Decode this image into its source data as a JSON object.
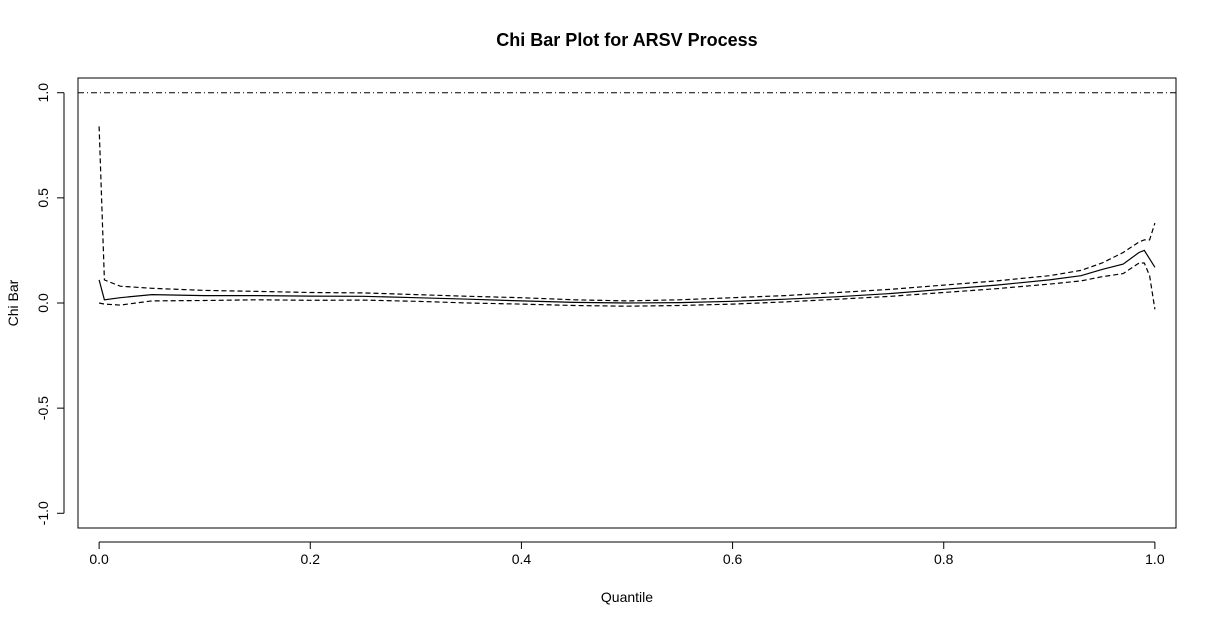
{
  "chart_data": {
    "type": "line",
    "title": "Chi Bar Plot for ARSV Process",
    "xlabel": "Quantile",
    "ylabel": "Chi Bar",
    "xlim": [
      -0.02,
      1.02
    ],
    "ylim": [
      -1.07,
      1.07
    ],
    "xticks": [
      0.0,
      0.2,
      0.4,
      0.6,
      0.8,
      1.0
    ],
    "xtick_labels": [
      "0.0",
      "0.2",
      "0.4",
      "0.6",
      "0.8",
      "1.0"
    ],
    "yticks": [
      -1.0,
      -0.5,
      0.0,
      0.5,
      1.0
    ],
    "ytick_labels": [
      "-1.0",
      "-0.5",
      "0.0",
      "0.5",
      "1.0"
    ],
    "grid": false,
    "reference_lines": [
      {
        "y": 1.0,
        "style": "dotdash"
      }
    ],
    "series": [
      {
        "style": "solid",
        "x": [
          0.0,
          0.005,
          0.02,
          0.05,
          0.1,
          0.15,
          0.2,
          0.25,
          0.3,
          0.35,
          0.4,
          0.45,
          0.5,
          0.55,
          0.6,
          0.65,
          0.7,
          0.75,
          0.8,
          0.85,
          0.9,
          0.93,
          0.95,
          0.97,
          0.985,
          0.99,
          0.995,
          1.0
        ],
        "y": [
          0.11,
          0.015,
          0.025,
          0.04,
          0.035,
          0.035,
          0.033,
          0.032,
          0.025,
          0.018,
          0.01,
          0.003,
          0.0,
          0.002,
          0.008,
          0.018,
          0.03,
          0.045,
          0.065,
          0.085,
          0.11,
          0.13,
          0.16,
          0.185,
          0.24,
          0.25,
          0.21,
          0.17
        ]
      },
      {
        "style": "dashed",
        "x": [
          0.0,
          0.005,
          0.02,
          0.05,
          0.1,
          0.15,
          0.2,
          0.25,
          0.3,
          0.35,
          0.4,
          0.45,
          0.5,
          0.55,
          0.6,
          0.65,
          0.7,
          0.75,
          0.8,
          0.85,
          0.9,
          0.93,
          0.95,
          0.97,
          0.985,
          0.99,
          0.995,
          1.0
        ],
        "y": [
          0.84,
          0.11,
          0.08,
          0.07,
          0.06,
          0.055,
          0.05,
          0.048,
          0.04,
          0.032,
          0.025,
          0.015,
          0.01,
          0.015,
          0.025,
          0.035,
          0.05,
          0.065,
          0.085,
          0.105,
          0.13,
          0.155,
          0.19,
          0.24,
          0.29,
          0.3,
          0.3,
          0.38
        ]
      },
      {
        "style": "dashed",
        "x": [
          0.0,
          0.005,
          0.02,
          0.05,
          0.1,
          0.15,
          0.2,
          0.25,
          0.3,
          0.35,
          0.4,
          0.45,
          0.5,
          0.55,
          0.6,
          0.65,
          0.7,
          0.75,
          0.8,
          0.85,
          0.9,
          0.93,
          0.95,
          0.97,
          0.985,
          0.99,
          0.995,
          1.0
        ],
        "y": [
          0.0,
          -0.005,
          -0.01,
          0.01,
          0.012,
          0.015,
          0.013,
          0.014,
          0.008,
          0.0,
          -0.005,
          -0.012,
          -0.015,
          -0.012,
          -0.005,
          0.005,
          0.018,
          0.032,
          0.05,
          0.068,
          0.09,
          0.105,
          0.125,
          0.14,
          0.19,
          0.19,
          0.13,
          -0.03
        ]
      }
    ]
  }
}
